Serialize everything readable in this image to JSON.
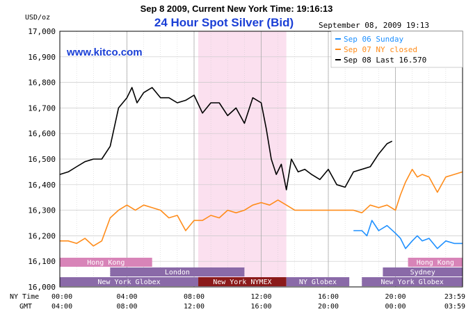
{
  "header": {
    "top_title": "Sep 8 2009, Current New York Time: 19:16:13",
    "chart_title": "24 Hour Spot Silver (Bid)",
    "date_stamp": "September 08, 2009 19:13",
    "website": "www.kitco.com",
    "y_unit": "USD/oz"
  },
  "legend": {
    "placement": "top-right",
    "items": [
      {
        "label": "Sep 06 Sunday",
        "color": "#1e90ff"
      },
      {
        "label": "Sep 07 NY closed",
        "color": "#ff8c1a"
      },
      {
        "label": "Sep 08 Last 16.570",
        "color": "#000000"
      }
    ]
  },
  "axis_labels": {
    "ny_time": "NY Time",
    "gmt": "GMT"
  },
  "colors": {
    "grid": "#c8c8c8",
    "nymex_shade": "#fbe0ef",
    "session_purple": "#8a6aa8",
    "session_pink": "#d884b8",
    "session_nymex": "#8b1a1a"
  },
  "sessions": [
    {
      "label": "Hong Kong",
      "start": 0.0,
      "end": 5.5,
      "row": 0,
      "kind": "pink"
    },
    {
      "label": "London",
      "start": 3.0,
      "end": 11.0,
      "row": 1,
      "kind": "purple"
    },
    {
      "label": "New York Globex",
      "start": 0.0,
      "end": 8.25,
      "row": 2,
      "kind": "purple"
    },
    {
      "label": "New York NYMEX",
      "start": 8.25,
      "end": 13.5,
      "row": 2,
      "kind": "nymex"
    },
    {
      "label": "NY Globex",
      "start": 13.5,
      "end": 17.25,
      "row": 2,
      "kind": "purple"
    },
    {
      "label": "New York Globex",
      "start": 18.0,
      "end": 24.0,
      "row": 2,
      "kind": "purple"
    },
    {
      "label": "Sydney",
      "start": 19.25,
      "end": 24.0,
      "row": 1,
      "kind": "purple"
    },
    {
      "label": "Hong Kong",
      "start": 20.75,
      "end": 24.0,
      "row": 0,
      "kind": "pink"
    }
  ],
  "chart_data": {
    "type": "line",
    "x_unit": "NY time (hours)",
    "xlim": [
      0,
      24
    ],
    "ylim": [
      16.0,
      17.0
    ],
    "y_ticks": [
      "16,000",
      "16,100",
      "16,200",
      "16,300",
      "16,400",
      "16,500",
      "16,600",
      "16,700",
      "16,800",
      "16,900",
      "17,000"
    ],
    "x_ticks_ny": [
      "00:00",
      "04:00",
      "08:00",
      "12:00",
      "16:00",
      "20:00",
      "23:59"
    ],
    "x_ticks_gmt": [
      "04:00",
      "08:00",
      "12:00",
      "16:00",
      "20:00",
      "00:00",
      "03:59"
    ],
    "x_tick_hours": [
      0,
      4,
      8,
      12,
      16,
      20,
      24
    ],
    "nymex_shade_hours": [
      8.25,
      13.5
    ],
    "grid": true,
    "series": [
      {
        "name": "Sep 08",
        "color": "#000000",
        "x": [
          0,
          0.5,
          1.0,
          1.5,
          2.0,
          2.5,
          3.0,
          3.5,
          4.0,
          4.3,
          4.6,
          5.0,
          5.5,
          6.0,
          6.5,
          7.0,
          7.5,
          8.0,
          8.5,
          9.0,
          9.5,
          10.0,
          10.5,
          11.0,
          11.5,
          12.0,
          12.3,
          12.6,
          12.9,
          13.2,
          13.5,
          13.8,
          14.2,
          14.6,
          15.0,
          15.5,
          16.0,
          16.5,
          17.0,
          17.5,
          18.0,
          18.5,
          19.0,
          19.5,
          19.8
        ],
        "y": [
          16.44,
          16.45,
          16.47,
          16.49,
          16.5,
          16.5,
          16.55,
          16.7,
          16.74,
          16.78,
          16.72,
          16.76,
          16.78,
          16.74,
          16.74,
          16.72,
          16.73,
          16.75,
          16.68,
          16.72,
          16.72,
          16.67,
          16.7,
          16.64,
          16.74,
          16.72,
          16.62,
          16.5,
          16.44,
          16.48,
          16.38,
          16.5,
          16.45,
          16.46,
          16.44,
          16.42,
          16.46,
          16.4,
          16.39,
          16.45,
          16.46,
          16.47,
          16.52,
          16.56,
          16.57
        ]
      },
      {
        "name": "Sep 07",
        "color": "#ff8c1a",
        "x": [
          0,
          0.5,
          1.0,
          1.5,
          2.0,
          2.5,
          3.0,
          3.5,
          4.0,
          4.5,
          5.0,
          5.5,
          6.0,
          6.5,
          7.0,
          7.5,
          8.0,
          8.5,
          9.0,
          9.5,
          10.0,
          10.5,
          11.0,
          11.5,
          12.0,
          12.5,
          13.0,
          13.5,
          14.0,
          15.0,
          16.0,
          17.0,
          17.5,
          18.0,
          18.5,
          19.0,
          19.5,
          20.0,
          20.3,
          20.6,
          21.0,
          21.3,
          21.6,
          22.0,
          22.5,
          23.0,
          23.5,
          24.0
        ],
        "y": [
          16.18,
          16.18,
          16.17,
          16.19,
          16.16,
          16.18,
          16.27,
          16.3,
          16.32,
          16.3,
          16.32,
          16.31,
          16.3,
          16.27,
          16.28,
          16.22,
          16.26,
          16.26,
          16.28,
          16.27,
          16.3,
          16.29,
          16.3,
          16.32,
          16.33,
          16.32,
          16.34,
          16.32,
          16.3,
          16.3,
          16.3,
          16.3,
          16.3,
          16.29,
          16.32,
          16.31,
          16.32,
          16.3,
          16.36,
          16.41,
          16.46,
          16.43,
          16.44,
          16.43,
          16.37,
          16.43,
          16.44,
          16.45
        ]
      },
      {
        "name": "Sep 06",
        "color": "#1e90ff",
        "x": [
          17.5,
          18.0,
          18.3,
          18.6,
          19.0,
          19.5,
          20.0,
          20.3,
          20.6,
          21.0,
          21.3,
          21.6,
          22.0,
          22.5,
          23.0,
          23.5,
          24.0
        ],
        "y": [
          16.22,
          16.22,
          16.2,
          16.26,
          16.22,
          16.24,
          16.21,
          16.19,
          16.15,
          16.18,
          16.2,
          16.18,
          16.19,
          16.15,
          16.18,
          16.17,
          16.17
        ]
      }
    ]
  }
}
